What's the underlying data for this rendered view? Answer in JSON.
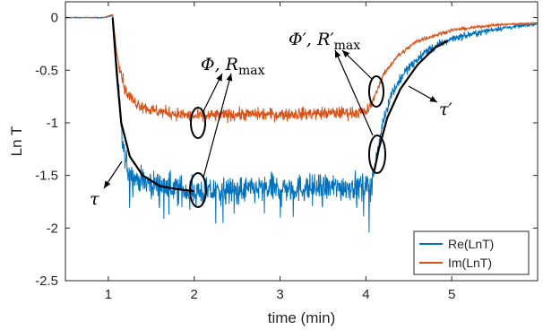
{
  "chart_data": {
    "type": "line",
    "xlabel": "time (min)",
    "ylabel": "Ln T",
    "xlim": [
      0.5,
      6
    ],
    "ylim": [
      -2.5,
      0.15
    ],
    "xticks": [
      1,
      2,
      3,
      4,
      5
    ],
    "xtick_labels": [
      "1",
      "2",
      "3",
      "4",
      "5"
    ],
    "yticks": [
      0,
      -0.5,
      -1,
      -1.5,
      -2,
      -2.5
    ],
    "ytick_labels": [
      "0",
      "-0.5",
      "-1",
      "-1.5",
      "-2",
      "-2.5"
    ],
    "grid": false,
    "legend_position": "bottom-right",
    "series": [
      {
        "name": "Re(LnT)",
        "color": "#0072BD",
        "noise": 0.13,
        "points": [
          [
            0.5,
            0
          ],
          [
            0.95,
            0
          ],
          [
            1.05,
            0.02
          ],
          [
            1.1,
            -0.45
          ],
          [
            1.15,
            -1.1
          ],
          [
            1.2,
            -1.4
          ],
          [
            1.3,
            -1.52
          ],
          [
            1.5,
            -1.58
          ],
          [
            1.8,
            -1.62
          ],
          [
            2.0,
            -1.66
          ],
          [
            2.5,
            -1.64
          ],
          [
            3.0,
            -1.62
          ],
          [
            3.5,
            -1.62
          ],
          [
            3.9,
            -1.6
          ],
          [
            4.05,
            -1.6
          ],
          [
            4.1,
            -1.45
          ],
          [
            4.2,
            -0.98
          ],
          [
            4.3,
            -0.72
          ],
          [
            4.45,
            -0.52
          ],
          [
            4.7,
            -0.32
          ],
          [
            5.0,
            -0.2
          ],
          [
            5.5,
            -0.11
          ],
          [
            6.0,
            -0.06
          ]
        ]
      },
      {
        "name": "Im(LnT)",
        "color": "#D95319",
        "noise": 0.06,
        "points": [
          [
            0.5,
            0
          ],
          [
            0.95,
            0
          ],
          [
            1.05,
            0.03
          ],
          [
            1.1,
            -0.35
          ],
          [
            1.2,
            -0.7
          ],
          [
            1.3,
            -0.8
          ],
          [
            1.5,
            -0.88
          ],
          [
            2.0,
            -0.94
          ],
          [
            2.5,
            -0.92
          ],
          [
            3.0,
            -0.92
          ],
          [
            3.5,
            -0.91
          ],
          [
            4.0,
            -0.9
          ],
          [
            4.05,
            -0.85
          ],
          [
            4.1,
            -0.75
          ],
          [
            4.2,
            -0.55
          ],
          [
            4.35,
            -0.38
          ],
          [
            4.6,
            -0.22
          ],
          [
            5.0,
            -0.12
          ],
          [
            5.5,
            -0.07
          ],
          [
            6.0,
            -0.05
          ]
        ]
      }
    ],
    "fit_curves": [
      {
        "color": "#000000",
        "points": [
          [
            1.05,
            0
          ],
          [
            1.1,
            -0.55
          ],
          [
            1.15,
            -1.0
          ],
          [
            1.25,
            -1.32
          ],
          [
            1.4,
            -1.5
          ],
          [
            1.6,
            -1.6
          ],
          [
            1.8,
            -1.63
          ],
          [
            2.0,
            -1.65
          ]
        ]
      },
      {
        "color": "#000000",
        "points": [
          [
            4.1,
            -1.45
          ],
          [
            4.15,
            -1.25
          ],
          [
            4.25,
            -0.95
          ],
          [
            4.4,
            -0.68
          ],
          [
            4.6,
            -0.45
          ],
          [
            4.8,
            -0.29
          ],
          [
            4.95,
            -0.22
          ]
        ]
      }
    ],
    "annotations": [
      {
        "id": "tau",
        "text": "τ"
      },
      {
        "id": "phi",
        "text": "Φ, R",
        "sub": "max"
      },
      {
        "id": "phi_prime",
        "text": "Φ′, R′",
        "sub": "max"
      },
      {
        "id": "tau_prime",
        "text": "τ′"
      }
    ]
  }
}
